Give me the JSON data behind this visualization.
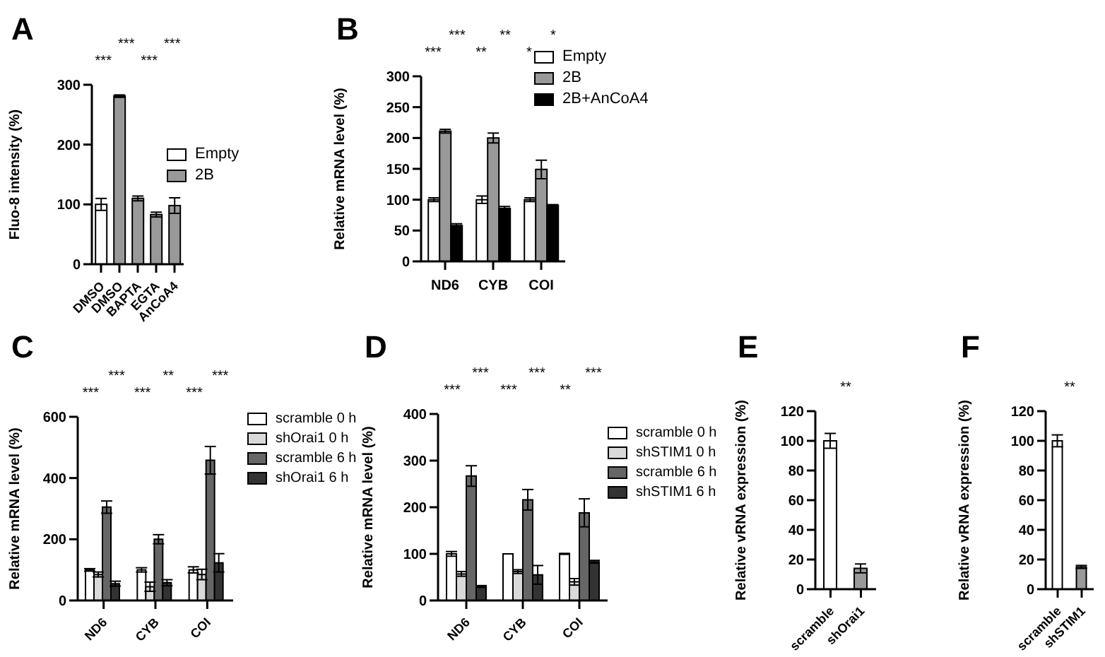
{
  "chart_data": [
    {
      "type": "bar",
      "title": "A",
      "ylabel": "Fluo-8 intensity (%)",
      "categories": [
        "DMSO",
        "DMSO",
        "BAPTA",
        "EGTA",
        "AnCoA4"
      ],
      "stacked": true,
      "series": [
        {
          "name": "Empty",
          "color": "#ffffff",
          "values": [
            100,
            null,
            null,
            null,
            null
          ],
          "errors": [
            10,
            null,
            null,
            null,
            null
          ]
        },
        {
          "name": "2B",
          "color": "#999999",
          "values": [
            null,
            281,
            110,
            83,
            98
          ],
          "errors": [
            null,
            2,
            4,
            4,
            13
          ]
        }
      ],
      "ylim": [
        0,
        300
      ],
      "yticks": [
        0,
        100,
        200,
        300
      ],
      "legend": "right",
      "annotations": [
        "***",
        "***",
        "***",
        "***"
      ]
    },
    {
      "type": "bar",
      "title": "B",
      "ylabel": "Relative mRNA level (%)",
      "categories": [
        "ND6",
        "CYB",
        "COI"
      ],
      "series": [
        {
          "name": "Empty",
          "color": "#ffffff",
          "values": [
            100,
            100,
            100
          ],
          "errors": [
            3,
            6,
            3
          ]
        },
        {
          "name": "2B",
          "color": "#999999",
          "values": [
            211,
            200,
            149
          ],
          "errors": [
            3,
            8,
            15
          ]
        },
        {
          "name": "2B+AnCoA4",
          "color": "#000000",
          "values": [
            58,
            86,
            91
          ],
          "errors": [
            3,
            3,
            1
          ]
        }
      ],
      "ylim": [
        0,
        300
      ],
      "yticks": [
        0,
        50,
        100,
        150,
        200,
        250,
        300
      ],
      "legend": "top right",
      "annotations": [
        "***",
        "***",
        "**",
        "**",
        "*",
        "*"
      ]
    },
    {
      "type": "bar",
      "title": "C",
      "ylabel": "Relative mRNA level (%)",
      "categories": [
        "ND6",
        "CYB",
        "COI"
      ],
      "series": [
        {
          "name": "scramble 0 h",
          "color": "#ffffff",
          "values": [
            100,
            100,
            100
          ],
          "errors": [
            4,
            7,
            10
          ]
        },
        {
          "name": "shOrai1 0 h",
          "color": "#d9d9d9",
          "values": [
            85,
            45,
            85
          ],
          "errors": [
            8,
            15,
            17
          ]
        },
        {
          "name": "scramble 6 h",
          "color": "#666666",
          "values": [
            305,
            200,
            458
          ],
          "errors": [
            20,
            15,
            45
          ]
        },
        {
          "name": "shOrai1 6 h",
          "color": "#333333",
          "values": [
            55,
            58,
            123
          ],
          "errors": [
            8,
            10,
            30
          ]
        }
      ],
      "ylim": [
        0,
        600
      ],
      "yticks": [
        0,
        200,
        400,
        600
      ],
      "legend": "right",
      "annotations": [
        "***",
        "***",
        "***",
        "**",
        "***",
        "***"
      ]
    },
    {
      "type": "bar",
      "title": "D",
      "ylabel": "Relative mRNA level (%)",
      "categories": [
        "ND6",
        "CYB",
        "COI"
      ],
      "series": [
        {
          "name": "scramble 0 h",
          "color": "#ffffff",
          "values": [
            100,
            100,
            100
          ],
          "errors": [
            5,
            0,
            1
          ]
        },
        {
          "name": "shSTIM1 0 h",
          "color": "#d9d9d9",
          "values": [
            57,
            62,
            40
          ],
          "errors": [
            5,
            4,
            7
          ]
        },
        {
          "name": "scramble 6 h",
          "color": "#666666",
          "values": [
            267,
            216,
            188
          ],
          "errors": [
            22,
            22,
            30
          ]
        },
        {
          "name": "shSTIM1 6 h",
          "color": "#333333",
          "values": [
            30,
            55,
            83
          ],
          "errors": [
            2,
            20,
            3
          ]
        }
      ],
      "ylim": [
        0,
        400
      ],
      "yticks": [
        0,
        100,
        200,
        300,
        400
      ],
      "legend": "right",
      "annotations": [
        "***",
        "***",
        "***",
        "***",
        "**",
        "***"
      ]
    },
    {
      "type": "bar",
      "title": "E",
      "ylabel": "Relative vRNA expression (%)",
      "categories": [
        "scramble",
        "shOrai1"
      ],
      "values": [
        100,
        14
      ],
      "errors": [
        5,
        3
      ],
      "colors": [
        "#ffffff",
        "#999999"
      ],
      "ylim": [
        0,
        120
      ],
      "yticks": [
        0,
        20,
        40,
        60,
        80,
        100,
        120
      ],
      "annotations": [
        "**"
      ]
    },
    {
      "type": "bar",
      "title": "F",
      "ylabel": "Relative vRNA expression (%)",
      "categories": [
        "scramble",
        "shSTIM1"
      ],
      "values": [
        100,
        15
      ],
      "errors": [
        4,
        1
      ],
      "colors": [
        "#ffffff",
        "#999999"
      ],
      "ylim": [
        0,
        120
      ],
      "yticks": [
        0,
        20,
        40,
        60,
        80,
        100,
        120
      ],
      "annotations": [
        "**"
      ]
    }
  ]
}
